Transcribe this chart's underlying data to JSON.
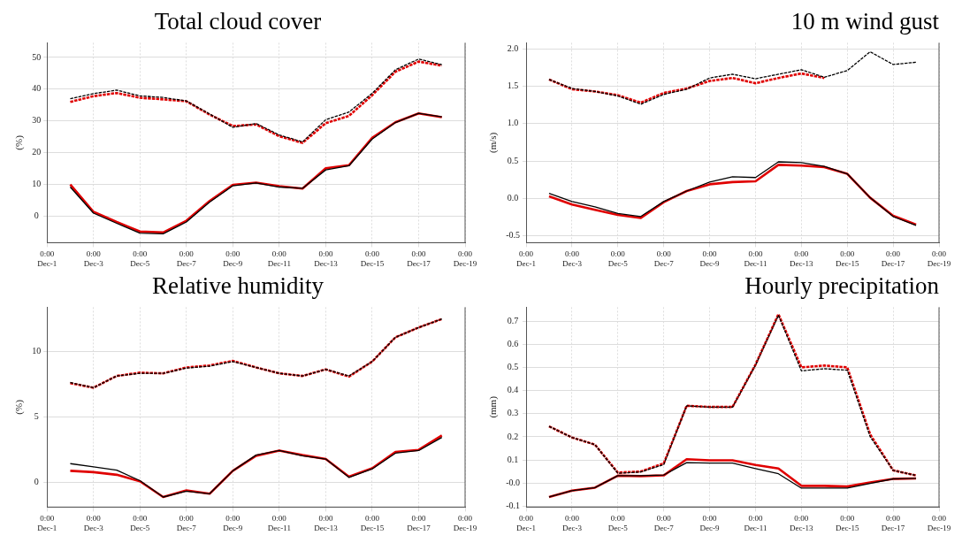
{
  "chart_data": [
    {
      "type": "line",
      "title": "Total cloud cover",
      "ylabel": "(%)",
      "grid": true,
      "marker": "none",
      "x": [
        "--12-02",
        "--12-03",
        "--12-04",
        "--12-05",
        "--12-06",
        "--12-07",
        "--12-08",
        "--12-09",
        "--12-10",
        "--12-11",
        "--12-12",
        "--12-13",
        "--12-14",
        "--12-15",
        "--12-16",
        "--12-17",
        "--12-18"
      ],
      "xlim": [
        "--12-01",
        "--12-19"
      ],
      "xticks": [
        {
          "value": "--12-01",
          "label": "0:00 Dec-1"
        },
        {
          "value": "--12-03",
          "label": "0:00 Dec-3"
        },
        {
          "value": "--12-05",
          "label": "0:00 Dec-5"
        },
        {
          "value": "--12-07",
          "label": "0:00 Dec-7"
        },
        {
          "value": "--12-09",
          "label": "0:00 Dec-9"
        },
        {
          "value": "--12-11",
          "label": "0:00 Dec-11"
        },
        {
          "value": "--12-13",
          "label": "0:00 Dec-13"
        },
        {
          "value": "--12-15",
          "label": "0:00 Dec-15"
        },
        {
          "value": "--12-17",
          "label": "0:00 Dec-17"
        },
        {
          "value": "--12-19",
          "label": "0:00 Dec-19"
        }
      ],
      "ylim": [
        -8.3,
        54.6
      ],
      "yticks": [
        0,
        10,
        20,
        30,
        40,
        50
      ],
      "series": [
        {
          "color": "#e00000",
          "line_style": "solid",
          "values": [
            10,
            1.4,
            -1.8,
            -4.8,
            -5.1,
            -1.4,
            4.8,
            9.9,
            10.6,
            9.5,
            8.7,
            15.1,
            16.1,
            24.7,
            29.6,
            32.4,
            31.2
          ]
        },
        {
          "color": "#000000",
          "line_style": "solid",
          "values": [
            9.2,
            1,
            -2.2,
            -5.3,
            -5.5,
            -1.8,
            4.5,
            9.6,
            10.5,
            9.2,
            8.8,
            14.6,
            15.9,
            24.3,
            29.5,
            32.4,
            31.3
          ]
        },
        {
          "color": "#e00000",
          "line_style": "dashed",
          "values": [
            36,
            37.8,
            38.8,
            37.3,
            36.8,
            36.2,
            32,
            28.4,
            28.9,
            25.2,
            23.1,
            29.3,
            31.6,
            38.1,
            45.5,
            48.7,
            47.4
          ]
        },
        {
          "color": "#000000",
          "line_style": "dashed",
          "values": [
            37,
            38.6,
            39.7,
            37.9,
            37.4,
            36.3,
            32.2,
            28,
            29.2,
            25.6,
            23.4,
            30.4,
            32.8,
            38.7,
            46.1,
            49.5,
            47.7
          ]
        }
      ]
    },
    {
      "type": "line",
      "title": "10 m wind gust",
      "ylabel": "(m/s)",
      "grid": true,
      "marker": "none",
      "x": [
        "--12-02",
        "--12-03",
        "--12-04",
        "--12-05",
        "--12-06",
        "--12-07",
        "--12-08",
        "--12-09",
        "--12-10",
        "--12-11",
        "--12-12",
        "--12-13",
        "--12-14",
        "--12-15",
        "--12-16",
        "--12-17",
        "--12-18"
      ],
      "xlim": [
        "--12-01",
        "--12-19"
      ],
      "xticks": [
        {
          "value": "--12-01",
          "label": "0:00 Dec-1"
        },
        {
          "value": "--12-03",
          "label": "0:00 Dec-3"
        },
        {
          "value": "--12-05",
          "label": "0:00 Dec-5"
        },
        {
          "value": "--12-07",
          "label": "0:00 Dec-7"
        },
        {
          "value": "--12-09",
          "label": "0:00 Dec-9"
        },
        {
          "value": "--12-11",
          "label": "0:00 Dec-11"
        },
        {
          "value": "--12-13",
          "label": "0:00 Dec-13"
        },
        {
          "value": "--12-15",
          "label": "0:00 Dec-15"
        },
        {
          "value": "--12-17",
          "label": "0:00 Dec-17"
        },
        {
          "value": "--12-19",
          "label": "0:00 Dec-19"
        }
      ],
      "ylim": [
        -0.59,
        2.08
      ],
      "yticks": [
        {
          "value": -0.5,
          "label": "-0.5"
        },
        {
          "value": 0,
          "label": "0.0"
        },
        {
          "value": 0.5,
          "label": "0.5"
        },
        {
          "value": 1,
          "label": "1.0"
        },
        {
          "value": 1.5,
          "label": "1.5"
        },
        {
          "value": 2,
          "label": "2.0"
        }
      ],
      "series": [
        {
          "color": "#e00000",
          "line_style": "solid",
          "values": [
            0.03,
            -0.08,
            -0.15,
            -0.22,
            -0.26,
            -0.05,
            0.1,
            0.19,
            0.22,
            0.23,
            0.45,
            0.44,
            0.42,
            0.33,
            0.01,
            -0.23,
            -0.35
          ]
        },
        {
          "color": "#000000",
          "line_style": "solid",
          "values": [
            0.07,
            -0.04,
            -0.11,
            -0.2,
            -0.24,
            -0.04,
            0.1,
            0.22,
            0.29,
            0.28,
            0.49,
            0.48,
            0.43,
            0.33,
            0.01,
            -0.24,
            -0.36
          ]
        },
        {
          "color": "#e00000",
          "line_style": "dashed",
          "values": [
            1.59,
            1.46,
            1.43,
            1.38,
            1.28,
            1.41,
            1.47,
            1.57,
            1.61,
            1.54,
            1.61,
            1.67,
            1.61,
            null,
            null,
            null,
            null
          ]
        },
        {
          "color": "#000000",
          "line_style": "dashed",
          "values": [
            1.59,
            1.47,
            1.43,
            1.37,
            1.26,
            1.39,
            1.46,
            1.61,
            1.66,
            1.6,
            1.66,
            1.72,
            1.62,
            1.71,
            1.96,
            1.79,
            1.82
          ]
        }
      ]
    },
    {
      "type": "line",
      "title": "Relative humidity",
      "ylabel": "(%)",
      "grid": true,
      "marker": "none",
      "x": [
        "--12-02",
        "--12-03",
        "--12-04",
        "--12-05",
        "--12-06",
        "--12-07",
        "--12-08",
        "--12-09",
        "--12-10",
        "--12-11",
        "--12-12",
        "--12-13",
        "--12-14",
        "--12-15",
        "--12-16",
        "--12-17",
        "--12-18"
      ],
      "xlim": [
        "--12-01",
        "--12-19"
      ],
      "xticks": [
        {
          "value": "--12-01",
          "label": "0:00 Dec-1"
        },
        {
          "value": "--12-03",
          "label": "0:00 Dec-3"
        },
        {
          "value": "--12-05",
          "label": "0:00 Dec-5"
        },
        {
          "value": "--12-07",
          "label": "0:00 Dec-7"
        },
        {
          "value": "--12-09",
          "label": "0:00 Dec-9"
        },
        {
          "value": "--12-11",
          "label": "0:00 Dec-11"
        },
        {
          "value": "--12-13",
          "label": "0:00 Dec-13"
        },
        {
          "value": "--12-15",
          "label": "0:00 Dec-15"
        },
        {
          "value": "--12-17",
          "label": "0:00 Dec-17"
        },
        {
          "value": "--12-19",
          "label": "0:00 Dec-19"
        }
      ],
      "ylim": [
        -1.87,
        13.4
      ],
      "yticks": [
        0,
        5,
        10
      ],
      "series": [
        {
          "color": "#e00000",
          "line_style": "solid",
          "values": [
            0.9,
            0.8,
            0.6,
            0.1,
            -1.1,
            -0.6,
            -0.85,
            0.9,
            2.05,
            2.45,
            2.1,
            1.8,
            0.45,
            1.1,
            2.35,
            2.5,
            3.6
          ]
        },
        {
          "color": "#000000",
          "line_style": "solid",
          "values": [
            1.45,
            1.2,
            0.95,
            0.15,
            -1.1,
            -0.65,
            -0.85,
            0.9,
            2.1,
            2.45,
            2.05,
            1.8,
            0.4,
            1.05,
            2.25,
            2.45,
            3.45
          ]
        },
        {
          "color": "#e00000",
          "line_style": "dashed",
          "values": [
            7.6,
            7.25,
            8.15,
            8.4,
            8.35,
            8.8,
            8.95,
            9.3,
            8.8,
            8.35,
            8.15,
            8.65,
            8.1,
            9.25,
            11.1,
            11.85,
            12.5
          ]
        },
        {
          "color": "#000000",
          "line_style": "dashed",
          "values": [
            7.65,
            7.25,
            8.15,
            8.35,
            8.35,
            8.75,
            8.9,
            9.25,
            8.8,
            8.35,
            8.15,
            8.65,
            8.15,
            9.25,
            11.1,
            11.85,
            12.5
          ]
        }
      ]
    },
    {
      "type": "line",
      "title": "Hourly precipitation",
      "ylabel": "(mm)",
      "grid": true,
      "marker": "none",
      "x": [
        "--12-02",
        "--12-03",
        "--12-04",
        "--12-05",
        "--12-06",
        "--12-07",
        "--12-08",
        "--12-09",
        "--12-10",
        "--12-11",
        "--12-12",
        "--12-13",
        "--12-14",
        "--12-15",
        "--12-16",
        "--12-17",
        "--12-18"
      ],
      "xlim": [
        "--12-01",
        "--12-19"
      ],
      "xticks": [
        {
          "value": "--12-01",
          "label": "0:00 Dec-1"
        },
        {
          "value": "--12-03",
          "label": "0:00 Dec-3"
        },
        {
          "value": "--12-05",
          "label": "0:00 Dec-5"
        },
        {
          "value": "--12-07",
          "label": "0:00 Dec-7"
        },
        {
          "value": "--12-09",
          "label": "0:00 Dec-9"
        },
        {
          "value": "--12-11",
          "label": "0:00 Dec-11"
        },
        {
          "value": "--12-13",
          "label": "0:00 Dec-13"
        },
        {
          "value": "--12-15",
          "label": "0:00 Dec-15"
        },
        {
          "value": "--12-17",
          "label": "0:00 Dec-17"
        },
        {
          "value": "--12-19",
          "label": "0:00 Dec-19"
        }
      ],
      "ylim": [
        -0.104,
        0.76
      ],
      "yticks": [
        -0.1,
        {
          "value": 0,
          "label": "-0.0"
        },
        0.1,
        0.2,
        0.3,
        0.4,
        0.5,
        0.6,
        0.7
      ],
      "series": [
        {
          "color": "#e00000",
          "line_style": "solid",
          "values": [
            -0.06,
            -0.033,
            -0.02,
            0.032,
            0.03,
            0.033,
            0.103,
            0.098,
            0.098,
            0.078,
            0.063,
            -0.012,
            -0.012,
            -0.015,
            0.003,
            0.018,
            0.02
          ]
        },
        {
          "color": "#000000",
          "line_style": "solid",
          "values": [
            -0.06,
            -0.033,
            -0.02,
            0.032,
            0.032,
            0.035,
            0.088,
            0.086,
            0.086,
            0.062,
            0.04,
            -0.022,
            -0.022,
            -0.022,
            -0.002,
            0.018,
            0.02
          ]
        },
        {
          "color": "#e00000",
          "line_style": "dashed",
          "values": [
            0.245,
            0.197,
            0.166,
            0.045,
            0.05,
            0.085,
            0.334,
            0.329,
            0.329,
            0.512,
            0.73,
            0.5,
            0.508,
            0.5,
            0.21,
            0.055,
            0.033
          ]
        },
        {
          "color": "#000000",
          "line_style": "dashed",
          "values": [
            0.245,
            0.197,
            0.166,
            0.042,
            0.048,
            0.08,
            0.334,
            0.328,
            0.328,
            0.51,
            0.725,
            0.485,
            0.494,
            0.488,
            0.2,
            0.055,
            0.033
          ]
        }
      ]
    }
  ]
}
